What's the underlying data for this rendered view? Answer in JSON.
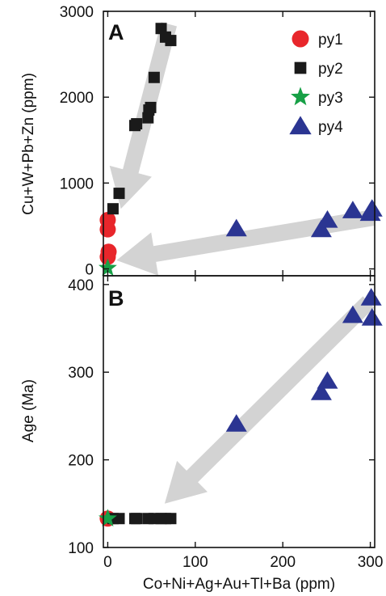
{
  "chart_data": [
    {
      "panel": "A",
      "type": "scatter",
      "panel_label": "A",
      "xlabel": "",
      "ylabel": "Cu+W+Pb+Zn (ppm)",
      "xlim": [
        -5,
        305
      ],
      "ylim": [
        -80,
        3000
      ],
      "yticks": [
        0,
        1000,
        2000,
        3000
      ],
      "grid": false,
      "legend_position": "top-right",
      "series": [
        {
          "name": "py1",
          "marker": "circle",
          "color": "#e8262b",
          "points": [
            [
              0,
              570
            ],
            [
              0,
              460
            ],
            [
              0,
              140
            ],
            [
              1,
              200
            ]
          ]
        },
        {
          "name": "py2",
          "marker": "square",
          "color": "#1a1a1a",
          "points": [
            [
              6,
              700
            ],
            [
              13,
              880
            ],
            [
              31,
              1670
            ],
            [
              33,
              1690
            ],
            [
              46,
              1760
            ],
            [
              47,
              1850
            ],
            [
              49,
              1880
            ],
            [
              53,
              2230
            ],
            [
              61,
              2800
            ],
            [
              66,
              2700
            ],
            [
              72,
              2660
            ]
          ]
        },
        {
          "name": "py3",
          "marker": "star",
          "color": "#17a046",
          "points": [
            [
              0,
              10
            ]
          ]
        },
        {
          "name": "py4",
          "marker": "triangle",
          "color": "#2b3592",
          "points": [
            [
              147,
              470
            ],
            [
              244,
              460
            ],
            [
              251,
              570
            ],
            [
              280,
              680
            ],
            [
              300,
              650
            ],
            [
              302,
              700
            ]
          ]
        }
      ],
      "arrows": [
        {
          "from": [
            70,
            2850
          ],
          "to": [
            15,
            700
          ]
        },
        {
          "from": [
            305,
            600
          ],
          "to": [
            10,
            100
          ]
        }
      ]
    },
    {
      "panel": "B",
      "type": "scatter",
      "panel_label": "B",
      "xlabel": "Co+Ni+Ag+Au+Tl+Ba (ppm)",
      "ylabel": "Age (Ma)",
      "xlim": [
        -5,
        305
      ],
      "ylim": [
        100,
        410
      ],
      "xticks": [
        0,
        100,
        200,
        300
      ],
      "yticks": [
        100,
        200,
        300,
        400
      ],
      "grid": false,
      "series": [
        {
          "name": "py1",
          "marker": "circle",
          "color": "#e8262b",
          "points": [
            [
              0,
              133
            ]
          ]
        },
        {
          "name": "py2",
          "marker": "square",
          "color": "#1a1a1a",
          "points": [
            [
              6,
              133
            ],
            [
              13,
              133
            ],
            [
              31,
              133
            ],
            [
              33,
              133
            ],
            [
              46,
              133
            ],
            [
              53,
              133
            ],
            [
              61,
              133
            ],
            [
              66,
              133
            ],
            [
              72,
              133
            ]
          ]
        },
        {
          "name": "py3",
          "marker": "star",
          "color": "#17a046",
          "points": [
            [
              0,
              133
            ]
          ]
        },
        {
          "name": "py4",
          "marker": "triangle",
          "color": "#2b3592",
          "points": [
            [
              147,
              241
            ],
            [
              244,
              277
            ],
            [
              251,
              290
            ],
            [
              280,
              365
            ],
            [
              301,
              385
            ],
            [
              302,
              362
            ]
          ]
        }
      ],
      "arrows": [
        {
          "from": [
            298,
            380
          ],
          "to": [
            65,
            150
          ]
        }
      ]
    }
  ]
}
